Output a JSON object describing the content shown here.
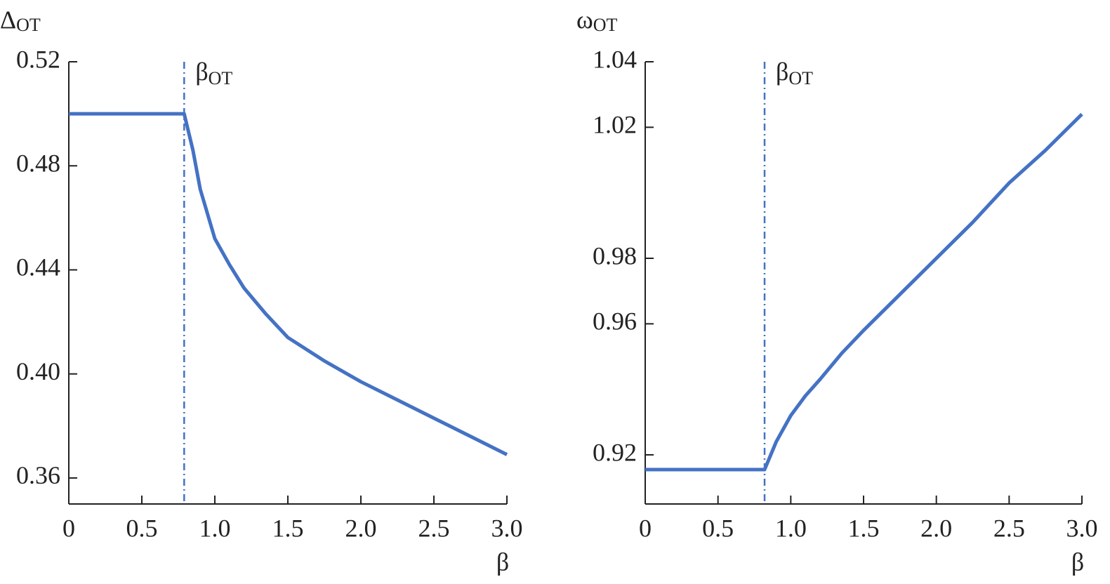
{
  "chart_data": [
    {
      "type": "line",
      "y_label": {
        "text": "Δ",
        "subscript": "OT"
      },
      "x_label": "β",
      "annotation": {
        "text": "β",
        "subscript": "OT"
      },
      "vline": 0.79,
      "x": [
        0,
        0.3,
        0.6,
        0.79,
        0.85,
        0.9,
        1.0,
        1.1,
        1.2,
        1.35,
        1.5,
        1.75,
        2.0,
        2.25,
        2.5,
        2.75,
        3.0
      ],
      "series": [
        {
          "color": "#4472c4",
          "values": [
            0.5,
            0.5,
            0.5,
            0.5,
            0.486,
            0.471,
            0.452,
            0.442,
            0.433,
            0.423,
            0.414,
            0.405,
            0.397,
            0.39,
            0.383,
            0.376,
            0.369
          ]
        }
      ],
      "xlim": [
        0,
        3
      ],
      "xticks": [
        0,
        0.5,
        {
          "value": 1,
          "label": "1.0"
        },
        1.5,
        {
          "value": 2,
          "label": "2.0"
        },
        2.5,
        {
          "value": 3,
          "label": "3.0"
        }
      ],
      "ylim": [
        0.35,
        0.52
      ],
      "yticks": [
        {
          "value": 0.36,
          "label": "0.36"
        },
        {
          "value": 0.4,
          "label": "0.40"
        },
        0.44,
        0.48,
        0.52
      ]
    },
    {
      "type": "line",
      "y_label": {
        "text": "ω",
        "subscript": "OT"
      },
      "x_label": "β",
      "annotation": {
        "text": "β",
        "subscript": "OT"
      },
      "vline": 0.82,
      "x": [
        0,
        0.3,
        0.6,
        0.82,
        0.9,
        1.0,
        1.1,
        1.2,
        1.35,
        1.5,
        1.75,
        2.0,
        2.25,
        2.5,
        2.75,
        3.0
      ],
      "series": [
        {
          "color": "#4472c4",
          "values": [
            0.9155,
            0.9155,
            0.9155,
            0.9155,
            0.924,
            0.932,
            0.938,
            0.943,
            0.951,
            0.958,
            0.969,
            0.98,
            0.991,
            1.003,
            1.013,
            1.024
          ]
        }
      ],
      "xlim": [
        0,
        3
      ],
      "xticks": [
        0,
        0.5,
        {
          "value": 1,
          "label": "1.0"
        },
        1.5,
        {
          "value": 2,
          "label": "2.0"
        },
        2.5,
        {
          "value": 3,
          "label": "3.0"
        }
      ],
      "ylim": [
        0.905,
        1.04
      ],
      "yticks": [
        0.92,
        0.96,
        0.98,
        1.02,
        1.04
      ]
    }
  ]
}
